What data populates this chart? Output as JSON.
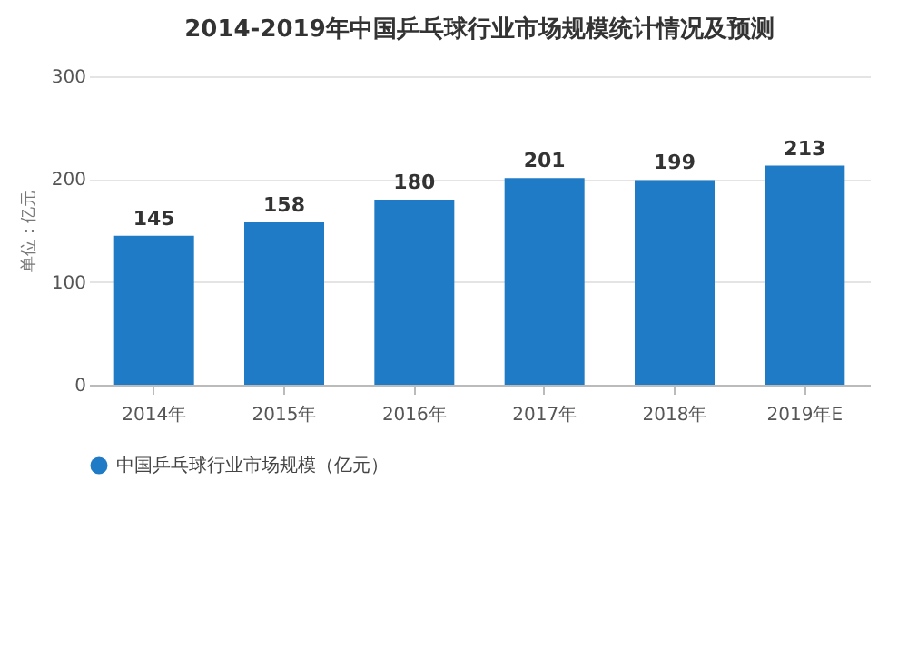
{
  "chart_data": {
    "type": "bar",
    "title": "2014-2019年中国乒乓球行业市场规模统计情况及预测",
    "ylabel": "单位：亿元",
    "categories": [
      "2014年",
      "2015年",
      "2016年",
      "2017年",
      "2018年",
      "2019年E"
    ],
    "series": [
      {
        "name": "中国乒乓球行业市场规模（亿元）",
        "color": "#1f7bc6",
        "values": [
          145,
          158,
          180,
          201,
          199,
          213
        ]
      }
    ],
    "ylim": [
      0,
      300
    ],
    "yticks": [
      0,
      100,
      200,
      300
    ],
    "grid": "y",
    "data_labels": true,
    "legend": "bottom"
  }
}
